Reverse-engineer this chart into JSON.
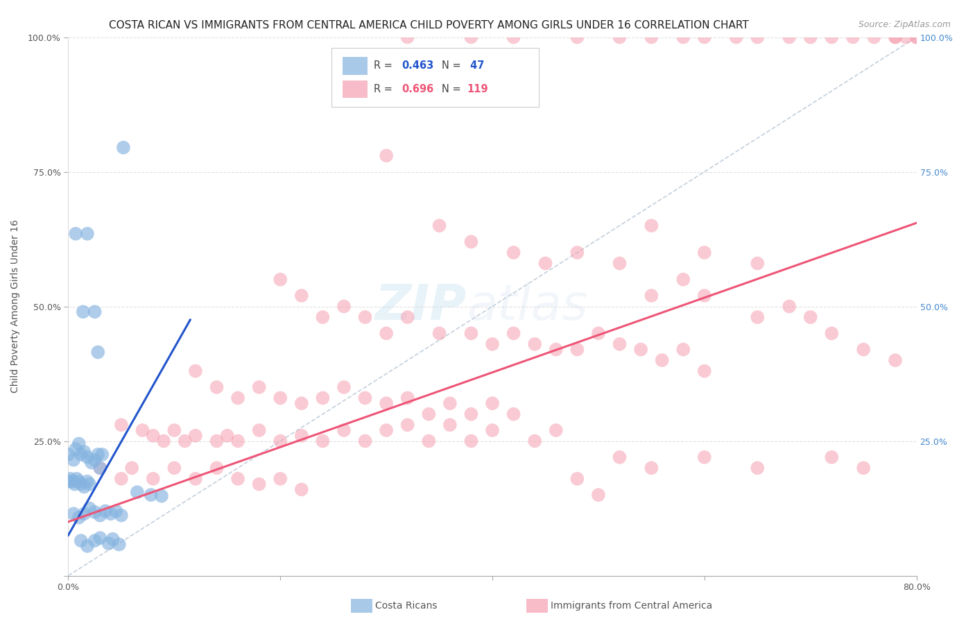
{
  "title": "COSTA RICAN VS IMMIGRANTS FROM CENTRAL AMERICA CHILD POVERTY AMONG GIRLS UNDER 16 CORRELATION CHART",
  "source": "Source: ZipAtlas.com",
  "ylabel": "Child Poverty Among Girls Under 16",
  "xlim": [
    0.0,
    0.8
  ],
  "ylim": [
    0.0,
    1.0
  ],
  "xticks": [
    0.0,
    0.2,
    0.4,
    0.6,
    0.8
  ],
  "xticklabels": [
    "0.0%",
    "",
    "",
    "",
    "80.0%"
  ],
  "yticks": [
    0.0,
    0.25,
    0.5,
    0.75,
    1.0
  ],
  "yticklabels_left": [
    "",
    "25.0%",
    "50.0%",
    "75.0%",
    "100.0%"
  ],
  "yticklabels_right": [
    "",
    "25.0%",
    "50.0%",
    "75.0%",
    "100.0%"
  ],
  "series1_color": "#85B3E0",
  "series2_color": "#F5A0B0",
  "line1_color": "#2255CC",
  "line2_color": "#EE5577",
  "ref_line_color": "#AABBCC",
  "background_color": "#FFFFFF",
  "grid_color": "#CCCCCC",
  "blue_line_x": [
    0.0,
    0.115
  ],
  "blue_line_y": [
    0.075,
    0.475
  ],
  "pink_line_x": [
    0.0,
    0.8
  ],
  "pink_line_y": [
    0.1,
    0.655
  ],
  "ref_line_x": [
    0.0,
    0.8
  ],
  "ref_line_y": [
    0.0,
    1.0
  ],
  "watermark_zip": "ZIP",
  "watermark_atlas": "atlas",
  "title_fontsize": 11,
  "label_fontsize": 10,
  "tick_fontsize": 9,
  "source_fontsize": 9
}
